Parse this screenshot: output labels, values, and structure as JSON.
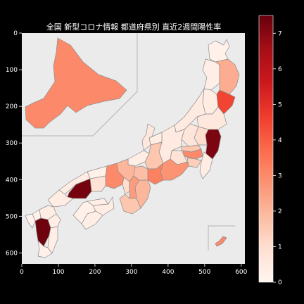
{
  "title": "全国 新型コロナ情報 都道府県別 直近2週間陽性率",
  "map": {
    "x_axis": {
      "ticks": [
        0,
        100,
        200,
        300,
        400,
        500,
        600
      ],
      "range": [
        0,
        610
      ]
    },
    "y_axis": {
      "ticks": [
        0,
        100,
        200,
        300,
        400,
        500,
        600
      ],
      "range": [
        0,
        630
      ]
    },
    "background": "#ebebeb",
    "border_color": "#8c8c8c"
  },
  "colorbar": {
    "min": 0,
    "max": 7.5,
    "ticks": [
      0,
      1,
      2,
      3,
      4,
      5,
      6,
      7
    ],
    "colormap": "Reds",
    "stops": [
      "#fff5f0",
      "#fee0d2",
      "#fcbba1",
      "#fc9272",
      "#fb6a4a",
      "#ef3b2c",
      "#cb181d",
      "#a50f15",
      "#67000d"
    ]
  },
  "chart_data": {
    "type": "choropleth",
    "title": "全国 新型コロナ情報 都道府県別 直近2週間陽性率",
    "value_range": [
      0,
      7.5
    ],
    "regions": [
      {
        "id": "hokkaido",
        "value": 3.0
      },
      {
        "id": "aomori",
        "value": 0.2
      },
      {
        "id": "akita",
        "value": 0.3
      },
      {
        "id": "iwate",
        "value": 2.2
      },
      {
        "id": "yamagata",
        "value": 0.4
      },
      {
        "id": "miyagi",
        "value": 4.5
      },
      {
        "id": "fukushima",
        "value": 0.6
      },
      {
        "id": "niigata",
        "value": 0.5
      },
      {
        "id": "ibaraki",
        "value": 7.2
      },
      {
        "id": "tochigi",
        "value": 1.0
      },
      {
        "id": "gunma",
        "value": 0.7
      },
      {
        "id": "saitama",
        "value": 1.6
      },
      {
        "id": "chiba",
        "value": 0.4
      },
      {
        "id": "tokyo",
        "value": 3.0
      },
      {
        "id": "kanagawa",
        "value": 1.4
      },
      {
        "id": "yamanashi",
        "value": 0.8
      },
      {
        "id": "nagano",
        "value": 0.5
      },
      {
        "id": "toyama",
        "value": 0.4
      },
      {
        "id": "ishikawa",
        "value": 0.6
      },
      {
        "id": "fukui",
        "value": 0.3
      },
      {
        "id": "gifu",
        "value": 1.6
      },
      {
        "id": "shizuoka",
        "value": 2.8
      },
      {
        "id": "aichi",
        "value": 3.2
      },
      {
        "id": "mie",
        "value": 2.0
      },
      {
        "id": "shiga",
        "value": 1.8
      },
      {
        "id": "kyoto",
        "value": 2.0
      },
      {
        "id": "osaka",
        "value": 1.0
      },
      {
        "id": "hyogo",
        "value": 3.0
      },
      {
        "id": "nara",
        "value": 2.6
      },
      {
        "id": "wakayama",
        "value": 1.6
      },
      {
        "id": "tottori",
        "value": 0.2
      },
      {
        "id": "shimane",
        "value": 0.4
      },
      {
        "id": "okayama",
        "value": 0.8
      },
      {
        "id": "hiroshima",
        "value": 7.3
      },
      {
        "id": "yamaguchi",
        "value": 0.4
      },
      {
        "id": "kagawa",
        "value": 0.3
      },
      {
        "id": "tokushima",
        "value": 0.4
      },
      {
        "id": "ehime",
        "value": 0.2
      },
      {
        "id": "kochi",
        "value": 0.3
      },
      {
        "id": "fukuoka",
        "value": 0.4
      },
      {
        "id": "saga",
        "value": 0.2
      },
      {
        "id": "nagasaki",
        "value": 0.1
      },
      {
        "id": "oita",
        "value": 0.3
      },
      {
        "id": "kumamoto",
        "value": 7.4
      },
      {
        "id": "miyazaki",
        "value": 0.3
      },
      {
        "id": "kagoshima",
        "value": 0.2
      },
      {
        "id": "okinawa",
        "value": 3.0
      }
    ]
  }
}
